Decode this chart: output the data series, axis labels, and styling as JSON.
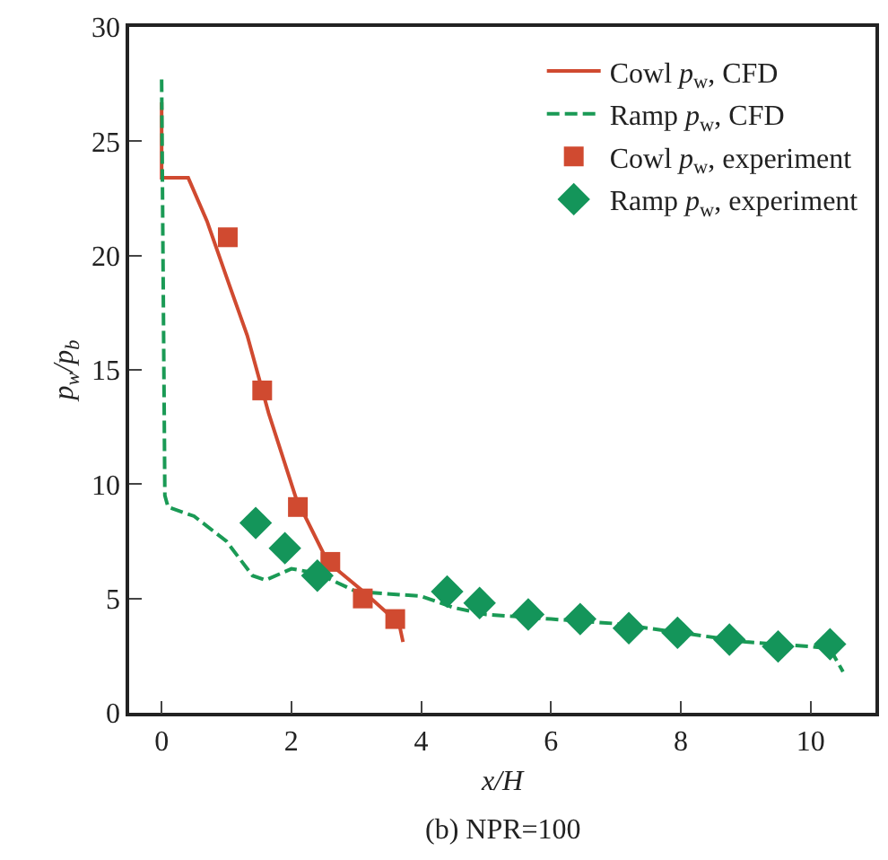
{
  "chart_data": {
    "type": "line",
    "xlabel": "x/H",
    "ylabel": "p$_{w}$/p$_{b}$",
    "annotations": [
      "(b) NPR=100"
    ],
    "xlim": [
      -0.5,
      11
    ],
    "xticks": [
      0,
      2,
      4,
      6,
      8,
      10
    ],
    "ylim": [
      0,
      30
    ],
    "yticks": [
      0,
      5,
      10,
      15,
      20,
      25,
      30
    ],
    "grid": false,
    "legend": "top right",
    "series": [
      {
        "name": "Cowl p$_{w}$, CFD",
        "color": "#d04a30",
        "line_style": "solid",
        "marker": "none",
        "x": [
          0,
          0,
          0.41,
          0.7,
          1.02,
          1.32,
          1.65,
          2.07,
          2.56,
          3.11,
          3.66,
          3.72
        ],
        "values": [
          26.7,
          23.4,
          23.4,
          21.5,
          18.9,
          16.5,
          13.1,
          9.4,
          6.6,
          5.3,
          3.9,
          3.1
        ]
      },
      {
        "name": "Ramp p$_{w}$, CFD",
        "color": "#1a9a55",
        "line_style": "dashed",
        "marker": "none",
        "x": [
          0,
          0.05,
          0.1,
          0.5,
          1,
          1.4,
          1.6,
          2,
          2.4,
          3,
          4,
          4.5,
          5,
          6,
          7,
          8,
          9,
          10,
          10.3,
          10.5
        ],
        "values": [
          27.7,
          9.5,
          9.0,
          8.6,
          7.5,
          6.0,
          5.8,
          6.3,
          6.1,
          5.3,
          5.1,
          4.6,
          4.3,
          4.1,
          3.9,
          3.5,
          3.1,
          2.9,
          2.8,
          1.8
        ]
      },
      {
        "name": "Cowl p$_{w}$, experiment",
        "type": "scatter",
        "color": "#d04a30",
        "marker": "square",
        "x": [
          1.02,
          1.55,
          2.1,
          2.6,
          3.1,
          3.6
        ],
        "values": [
          20.8,
          14.1,
          9,
          6.6,
          5,
          4.1
        ]
      },
      {
        "name": "Ramp p$_{w}$, experiment",
        "type": "scatter",
        "color": "#14955a",
        "marker": "diamond",
        "x": [
          1.45,
          1.9,
          2.4,
          4.4,
          4.9,
          5.65,
          6.45,
          7.2,
          7.95,
          8.75,
          9.5,
          10.3
        ],
        "values": [
          8.3,
          7.2,
          6,
          5.3,
          4.8,
          4.3,
          4.1,
          3.7,
          3.5,
          3.2,
          2.9,
          3.0
        ]
      }
    ]
  }
}
